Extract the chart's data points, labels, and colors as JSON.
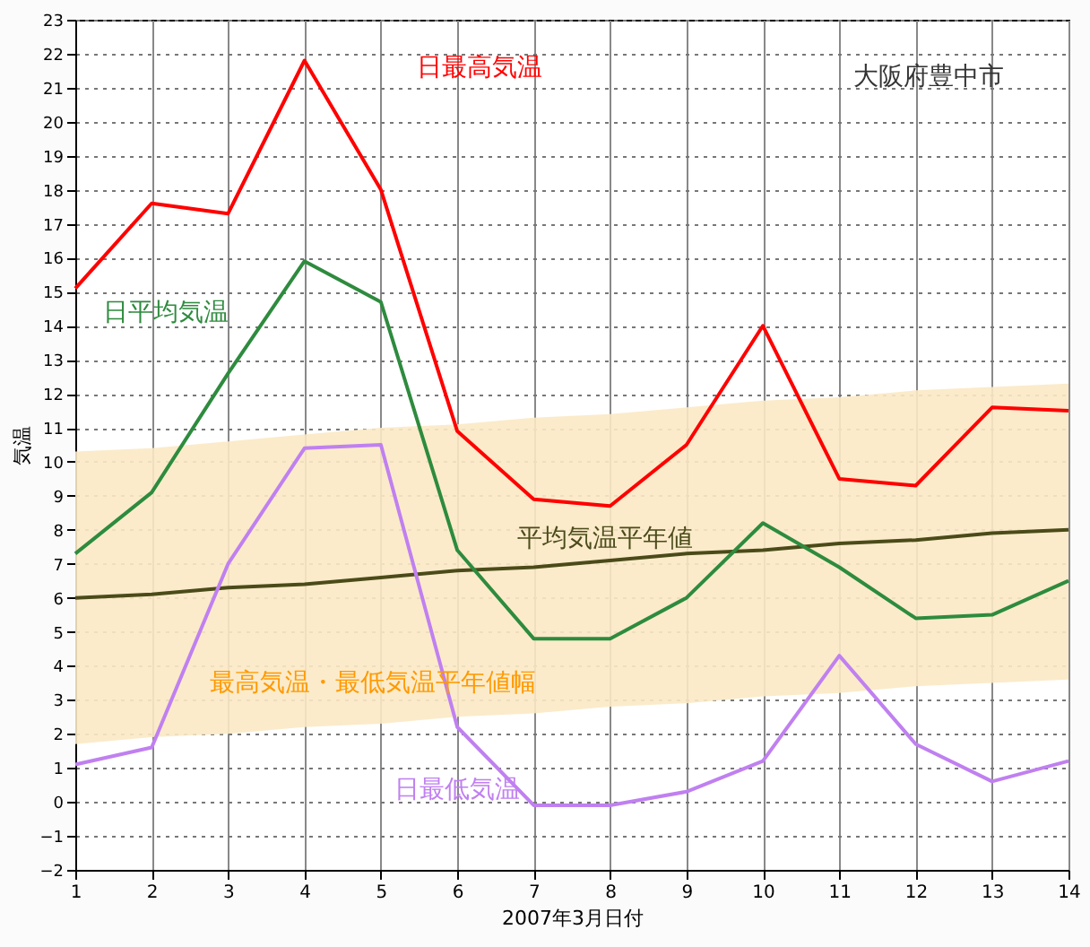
{
  "chart_data": {
    "type": "line",
    "xlabel": "2007年3月日付",
    "ylabel": "気温",
    "x": [
      1,
      2,
      3,
      4,
      5,
      6,
      7,
      8,
      9,
      10,
      11,
      12,
      13,
      14
    ],
    "xlim": [
      1,
      14
    ],
    "xticks": [
      1,
      2,
      3,
      4,
      5,
      6,
      7,
      8,
      9,
      10,
      11,
      12,
      13,
      14
    ],
    "ylim": [
      -2,
      23
    ],
    "yticks": [
      -2,
      -1,
      0,
      1,
      2,
      3,
      4,
      5,
      6,
      7,
      8,
      9,
      10,
      11,
      12,
      13,
      14,
      15,
      16,
      17,
      18,
      19,
      20,
      21,
      22,
      23
    ],
    "grid": true,
    "series": [
      {
        "name": "平均気温平年値",
        "color": "#4b4b1a",
        "values": [
          6.0,
          6.1,
          6.3,
          6.4,
          6.6,
          6.8,
          6.9,
          7.1,
          7.3,
          7.4,
          7.6,
          7.7,
          7.9,
          8.0
        ],
        "lower": [
          1.7,
          1.9,
          2.0,
          2.2,
          2.3,
          2.5,
          2.6,
          2.8,
          2.9,
          3.1,
          3.2,
          3.4,
          3.5,
          3.6
        ],
        "upper": [
          10.3,
          10.4,
          10.6,
          10.8,
          11.0,
          11.1,
          11.3,
          11.4,
          11.6,
          11.8,
          11.9,
          12.1,
          12.2,
          12.3
        ]
      },
      {
        "name": "日最高気温",
        "color": "#ff0000",
        "values": [
          15.1,
          17.6,
          17.3,
          21.8,
          18.0,
          10.9,
          8.9,
          8.7,
          10.5,
          14.0,
          9.5,
          9.3,
          11.6,
          11.5
        ]
      },
      {
        "name": "日平均気温",
        "color": "#2e8b3e",
        "values": [
          7.3,
          9.1,
          12.6,
          15.9,
          14.7,
          7.4,
          4.8,
          4.8,
          6.0,
          8.2,
          6.9,
          5.4,
          5.5,
          6.5
        ]
      },
      {
        "name": "日最低気温",
        "color": "#c080f0",
        "values": [
          1.1,
          1.6,
          7.0,
          10.4,
          10.5,
          2.2,
          -0.1,
          -0.1,
          0.3,
          1.2,
          4.3,
          1.7,
          0.6,
          1.2
        ]
      }
    ],
    "annotations": [
      "最高気温・最低気温平年値幅",
      "大阪府豊中市"
    ]
  }
}
